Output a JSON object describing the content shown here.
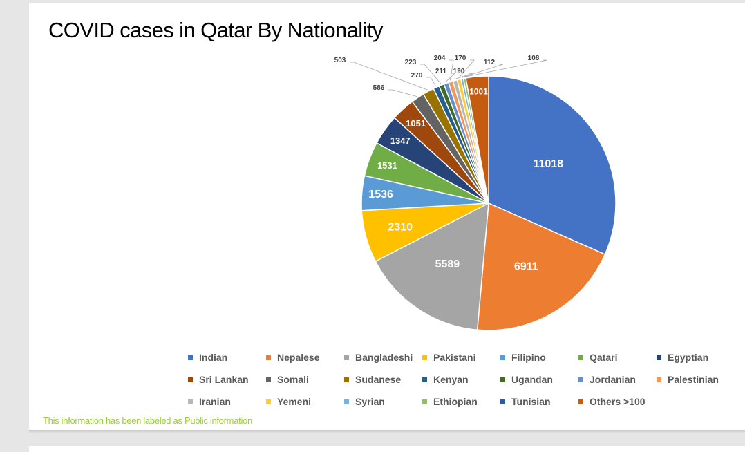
{
  "title": "COVID cases in Qatar By Nationality",
  "footer_note": "This information has been labeled as Public information",
  "chart_data": {
    "type": "pie",
    "title": "COVID cases in Qatar By Nationality",
    "legend_position": "bottom",
    "slices": [
      {
        "name": "Indian",
        "value": 11018,
        "color": "#4472C4"
      },
      {
        "name": "Nepalese",
        "value": 6911,
        "color": "#ED7D31"
      },
      {
        "name": "Bangladeshi",
        "value": 5589,
        "color": "#A5A5A5"
      },
      {
        "name": "Pakistani",
        "value": 2310,
        "color": "#FFC000"
      },
      {
        "name": "Filipino",
        "value": 1536,
        "color": "#5B9BD5"
      },
      {
        "name": "Qatari",
        "value": 1531,
        "color": "#70AD47"
      },
      {
        "name": "Egyptian",
        "value": 1347,
        "color": "#264478"
      },
      {
        "name": "Sri Lankan",
        "value": 1051,
        "color": "#9E480E"
      },
      {
        "name": "Somali",
        "value": 586,
        "color": "#636363"
      },
      {
        "name": "Sudanese",
        "value": 503,
        "color": "#997300"
      },
      {
        "name": "Kenyan",
        "value": 270,
        "color": "#255E91"
      },
      {
        "name": "Ugandan",
        "value": 223,
        "color": "#43682B"
      },
      {
        "name": "Jordanian",
        "value": 211,
        "color": "#698ED0"
      },
      {
        "name": "Palestinian",
        "value": 204,
        "color": "#F1975A"
      },
      {
        "name": "Iranian",
        "value": 190,
        "color": "#B7B7B7"
      },
      {
        "name": "Yemeni",
        "value": 170,
        "color": "#FFCD33"
      },
      {
        "name": "Syrian",
        "value": 112,
        "color": "#7CAFDD"
      },
      {
        "name": "Ethiopian",
        "value": 108,
        "color": "#8CC168"
      },
      {
        "name": "Tunisian",
        "value": 0,
        "color": "#335AA1"
      },
      {
        "name": "Others >100",
        "value": 1001,
        "color": "#C55A11"
      }
    ]
  }
}
